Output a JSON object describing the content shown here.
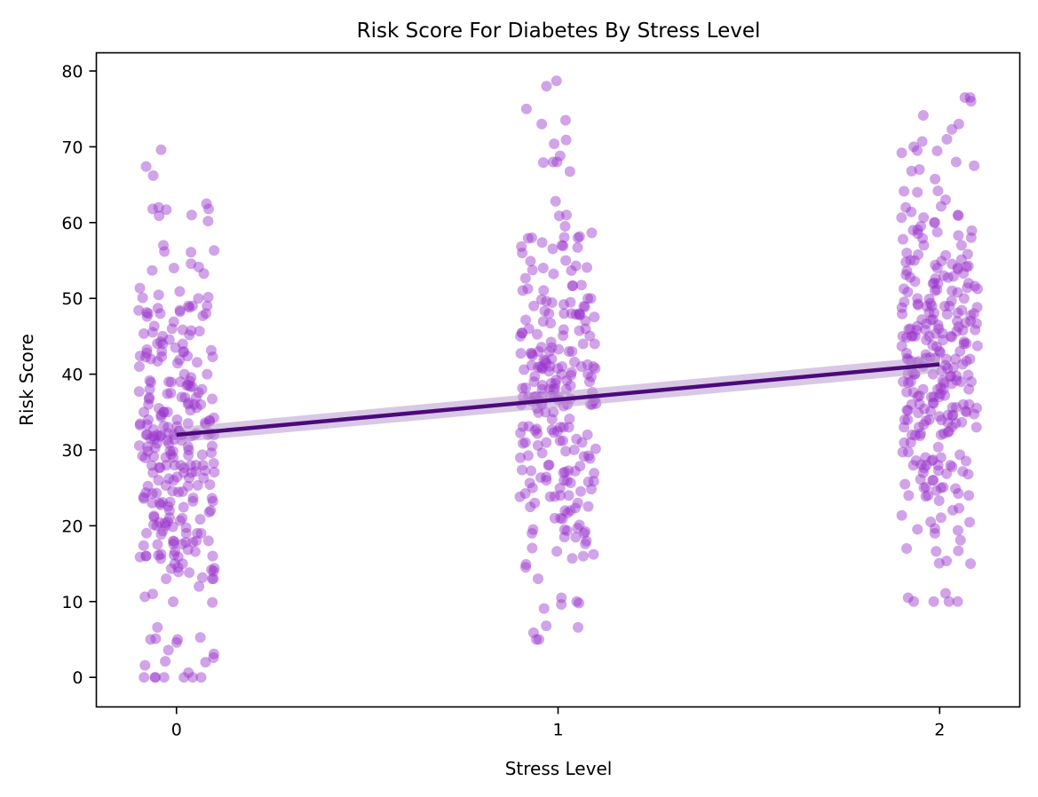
{
  "chart_data": {
    "type": "scatter",
    "title": "Risk Score For Diabetes By Stress Level",
    "xlabel": "Stress Level",
    "ylabel": "Risk Score",
    "x_ticks": [
      "0",
      "1",
      "2"
    ],
    "y_ticks": [
      "0",
      "10",
      "20",
      "30",
      "40",
      "50",
      "60",
      "70",
      "80"
    ],
    "xlim": [
      -0.21,
      2.21
    ],
    "ylim": [
      -3.9,
      82.4
    ],
    "grid": false,
    "jitter_width": 0.1,
    "colors": {
      "points": "#9932CC",
      "regression_line": "#4B0A7A",
      "confidence_band": "#B99BD0"
    },
    "points_opacity": 0.45,
    "regression": {
      "x": [
        0,
        2
      ],
      "y": [
        32.0,
        41.3
      ],
      "ci_halfwidth": [
        1.0,
        1.1
      ]
    },
    "series": [
      {
        "x": 0,
        "count": 300,
        "y_range": [
          0,
          69.6
        ],
        "y_mean": 31.9,
        "y_sd": 12.5,
        "highlighted_values": [
          0.0,
          0.0,
          3.1,
          3.6,
          4.6,
          5.0,
          5.1,
          6.6,
          66.2,
          67.4,
          69.6,
          62.5,
          61.8,
          61.8,
          60.9,
          60.2
        ]
      },
      {
        "x": 1,
        "count": 260,
        "y_range": [
          5.0,
          78.7
        ],
        "y_mean": 36.6,
        "y_sd": 12.8,
        "highlighted_values": [
          5.0,
          6.6,
          6.8,
          9.8,
          10.0,
          10.5,
          73.5,
          78.0,
          78.7,
          75.0,
          73.0,
          70.9,
          70.4,
          68.8,
          68.0,
          68.0
        ]
      },
      {
        "x": 2,
        "count": 300,
        "y_range": [
          10.0,
          76.5
        ],
        "y_mean": 41.2,
        "y_sd": 13.2,
        "highlighted_values": [
          10.0,
          10.0,
          10.0,
          10.5,
          73.0,
          76.0,
          76.5,
          72.3,
          70.7,
          70.0,
          69.5,
          69.2,
          68.0,
          67.5,
          67.0,
          66.8
        ]
      }
    ]
  }
}
